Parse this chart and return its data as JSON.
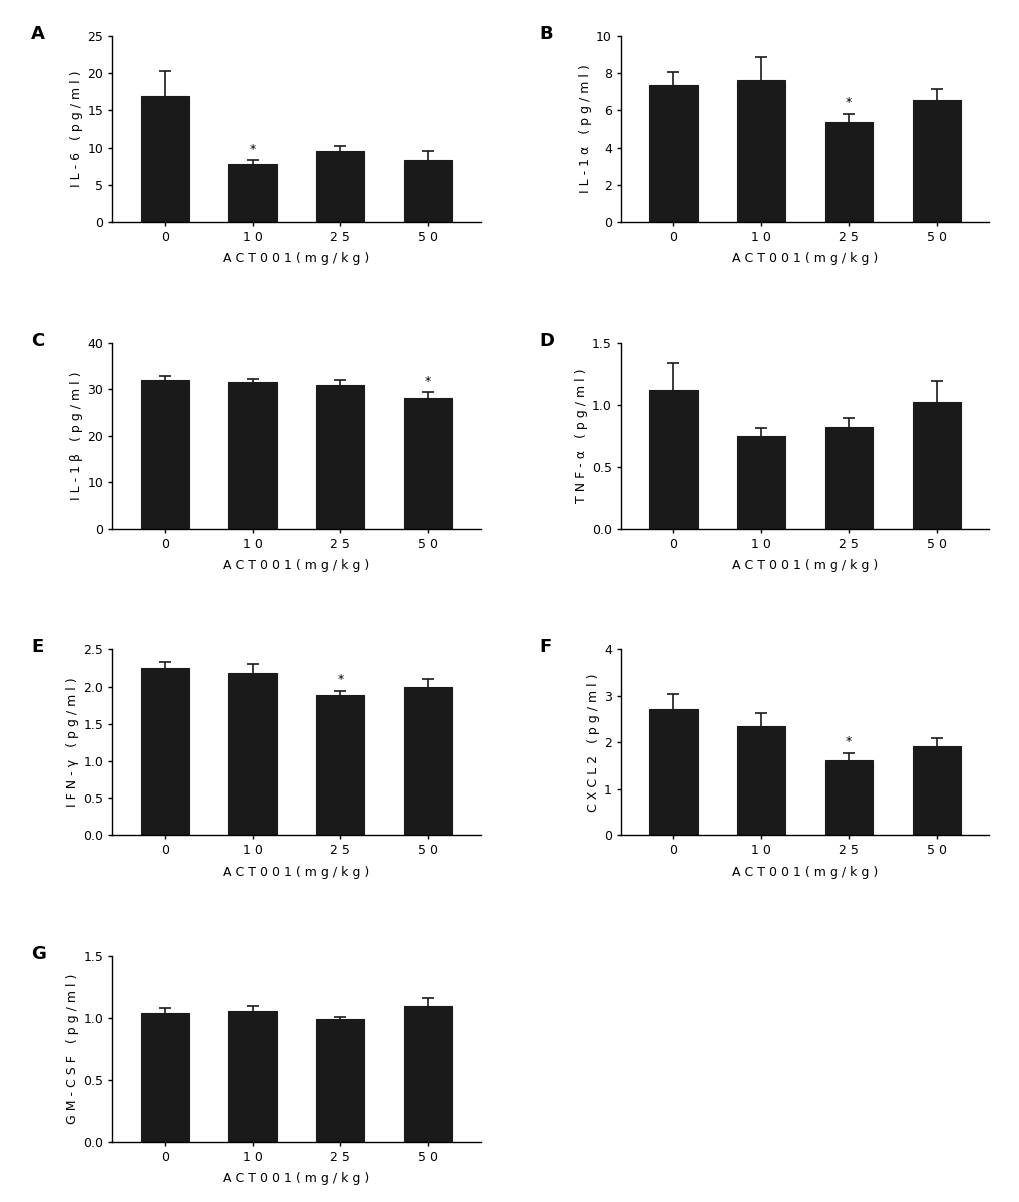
{
  "panels": [
    {
      "label": "A",
      "ylabel": "IL-6 (pg/ml)",
      "categories": [
        "0",
        "10",
        "25",
        "50"
      ],
      "values": [
        17.0,
        7.8,
        9.5,
        8.3
      ],
      "errors": [
        3.3,
        0.5,
        0.7,
        1.2
      ],
      "sig_index": 1,
      "ylim": [
        0,
        25
      ],
      "yticks": [
        0,
        5,
        10,
        15,
        20,
        25
      ]
    },
    {
      "label": "B",
      "ylabel": "IL-1α (pg/ml)",
      "categories": [
        "0",
        "10",
        "25",
        "50"
      ],
      "values": [
        7.35,
        7.65,
        5.4,
        6.55
      ],
      "errors": [
        0.7,
        1.2,
        0.4,
        0.6
      ],
      "sig_index": 2,
      "ylim": [
        0,
        10
      ],
      "yticks": [
        0,
        2,
        4,
        6,
        8,
        10
      ]
    },
    {
      "label": "C",
      "ylabel": "IL-1β (pg/ml)",
      "categories": [
        "0",
        "10",
        "25",
        "50"
      ],
      "values": [
        32.0,
        31.5,
        31.0,
        28.0
      ],
      "errors": [
        0.8,
        0.7,
        0.9,
        1.3
      ],
      "sig_index": 3,
      "ylim": [
        0,
        40
      ],
      "yticks": [
        0,
        10,
        20,
        30,
        40
      ]
    },
    {
      "label": "D",
      "ylabel": "TNF-α (pg/ml)",
      "categories": [
        "0",
        "10",
        "25",
        "50"
      ],
      "values": [
        1.12,
        0.75,
        0.82,
        1.02
      ],
      "errors": [
        0.22,
        0.06,
        0.07,
        0.17
      ],
      "sig_index": -1,
      "ylim": [
        0.0,
        1.5
      ],
      "yticks": [
        0.0,
        0.5,
        1.0,
        1.5
      ]
    },
    {
      "label": "E",
      "ylabel": "IFN-γ (pg/ml)",
      "categories": [
        "0",
        "10",
        "25",
        "50"
      ],
      "values": [
        2.25,
        2.18,
        1.88,
        2.0
      ],
      "errors": [
        0.08,
        0.12,
        0.06,
        0.1
      ],
      "sig_index": 2,
      "ylim": [
        0.0,
        2.5
      ],
      "yticks": [
        0.0,
        0.5,
        1.0,
        1.5,
        2.0,
        2.5
      ]
    },
    {
      "label": "F",
      "ylabel": "CXCL2 (pg/ml)",
      "categories": [
        "0",
        "10",
        "25",
        "50"
      ],
      "values": [
        2.72,
        2.35,
        1.62,
        1.92
      ],
      "errors": [
        0.32,
        0.28,
        0.15,
        0.18
      ],
      "sig_index": 2,
      "ylim": [
        0.0,
        4.0
      ],
      "yticks": [
        0,
        1,
        2,
        3,
        4
      ]
    },
    {
      "label": "G",
      "ylabel": "GM-CSF (pg/ml)",
      "categories": [
        "0",
        "10",
        "25",
        "50"
      ],
      "values": [
        1.04,
        1.06,
        0.99,
        1.1
      ],
      "errors": [
        0.04,
        0.04,
        0.02,
        0.06
      ],
      "sig_index": -1,
      "ylim": [
        0.0,
        1.5
      ],
      "yticks": [
        0.0,
        0.5,
        1.0,
        1.5
      ]
    }
  ],
  "xlabel": "ACT001(mg/kg)",
  "bar_color": "#1a1a1a",
  "bar_edge_color": "#1a1a1a",
  "error_color": "#1a1a1a",
  "background_color": "#ffffff",
  "bar_width": 0.55
}
